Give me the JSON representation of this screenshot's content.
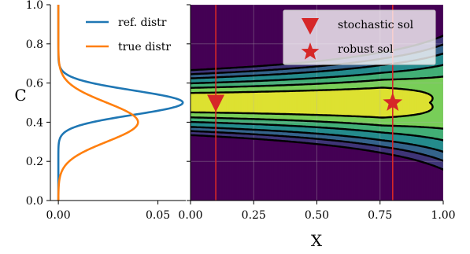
{
  "chart_data": [
    {
      "type": "line",
      "title": "",
      "xlabel": "",
      "ylabel": "C",
      "xlim": [
        -0.004,
        0.064
      ],
      "ylim": [
        0.0,
        1.0
      ],
      "xticks": [
        0.0,
        0.05
      ],
      "xtick_labels": [
        "0.00",
        "0.05"
      ],
      "yticks": [
        0.0,
        0.2,
        0.4,
        0.6,
        0.8,
        1.0
      ],
      "ytick_labels": [
        "0.0",
        "0.2",
        "0.4",
        "0.6",
        "0.8",
        "1.0"
      ],
      "grid": false,
      "legend_position": "top-right",
      "series": [
        {
          "name": "ref. distr",
          "color": "#1f77b4",
          "mean": 0.5,
          "sd": 0.062,
          "peak": 0.0625
        },
        {
          "name": "true distr",
          "color": "#ff7f0e",
          "mean": 0.4,
          "sd": 0.1,
          "peak": 0.04
        }
      ]
    },
    {
      "type": "heatmap",
      "title": "",
      "xlabel": "X",
      "ylabel": "",
      "xlim": [
        0.0,
        1.0
      ],
      "ylim": [
        0.0,
        1.0
      ],
      "xticks": [
        0.0,
        0.25,
        0.5,
        0.75,
        1.0
      ],
      "xtick_labels": [
        "0.00",
        "0.25",
        "0.50",
        "0.75",
        "1.00"
      ],
      "grid": true,
      "colormap": "viridis",
      "contour_levels": [
        0.3,
        0.7,
        1.2,
        1.9,
        2.6,
        3.4
      ],
      "contour_color": "#000000",
      "legend_position": "top-right",
      "vertical_lines": [
        {
          "x": 0.1,
          "color": "#d62728"
        },
        {
          "x": 0.8,
          "color": "#d62728"
        }
      ],
      "markers": [
        {
          "name": "stochastic sol",
          "shape": "triangle-down",
          "x": 0.1,
          "y": 0.5,
          "color": "#d62728"
        },
        {
          "name": "robust sol",
          "shape": "star",
          "x": 0.8,
          "y": 0.5,
          "color": "#d62728"
        }
      ]
    }
  ]
}
